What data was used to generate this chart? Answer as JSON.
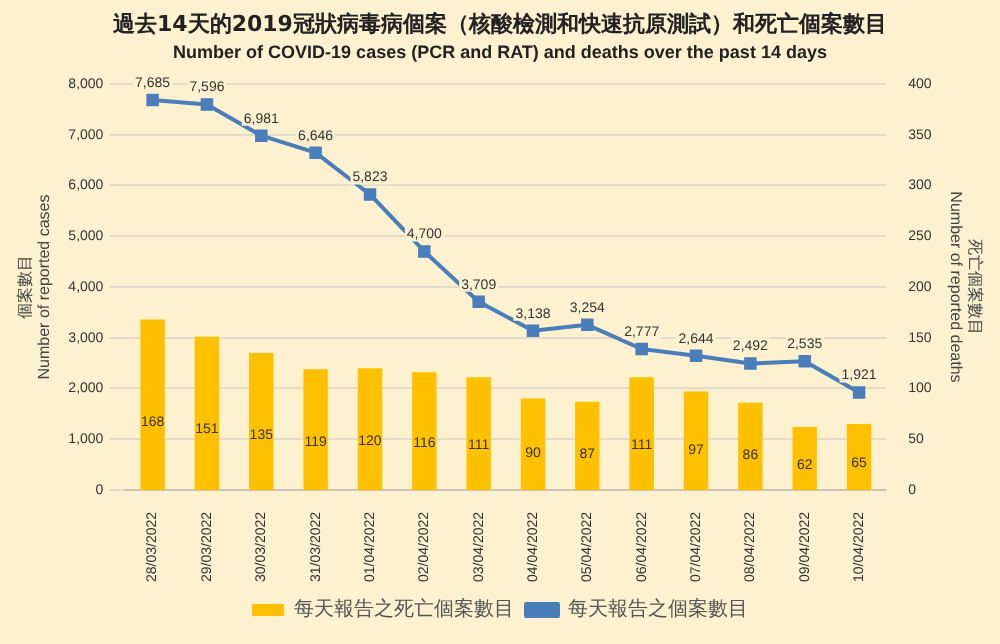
{
  "chart_data": {
    "type": "bar",
    "title": "過去14天的2019冠狀病毒病個案（核酸檢測和快速抗原測試）和死亡個案數目",
    "subtitle": "Number of COVID-19 cases (PCR and RAT) and deaths over the past 14 days",
    "ylabel": "個案數目\nNumber of reported cases",
    "y2label": "死亡個案數目\nNumber of reported deaths",
    "categories": [
      "28/03/2022",
      "29/03/2022",
      "30/03/2022",
      "31/03/2022",
      "01/04/2022",
      "02/04/2022",
      "03/04/2022",
      "04/04/2022",
      "05/04/2022",
      "06/04/2022",
      "07/04/2022",
      "08/04/2022",
      "09/04/2022",
      "10/04/2022"
    ],
    "series": [
      {
        "name": "每天報告之死亡個案數目",
        "axis": "y2",
        "color": "#ffc000",
        "values": [
          168,
          151,
          135,
          119,
          120,
          116,
          111,
          90,
          87,
          111,
          97,
          86,
          62,
          65
        ]
      },
      {
        "name": "每天報告之個案數目",
        "type": "line",
        "color": "#4a7ebb",
        "values": [
          7685,
          7596,
          6981,
          6646,
          5823,
          4700,
          3709,
          3138,
          3254,
          2777,
          2644,
          2492,
          2535,
          1921
        ],
        "value_labels": [
          "7,685",
          "7,596",
          "6,981",
          "6,646",
          "5,823",
          "4,700",
          "3,709",
          "3,138",
          "3,254",
          "2,777",
          "2,644",
          "2,492",
          "2,535",
          "1,921"
        ]
      }
    ],
    "ylim": [
      0,
      8000
    ],
    "yticks": [
      {
        "value": 0,
        "label": "0"
      },
      {
        "value": 1000,
        "label": "1,000"
      },
      {
        "value": 2000,
        "label": "2,000"
      },
      {
        "value": 3000,
        "label": "3,000"
      },
      {
        "value": 4000,
        "label": "4,000"
      },
      {
        "value": 5000,
        "label": "5,000"
      },
      {
        "value": 6000,
        "label": "6,000"
      },
      {
        "value": 7000,
        "label": "7,000"
      },
      {
        "value": 8000,
        "label": "8,000"
      }
    ],
    "y2lim": [
      0,
      400
    ],
    "y2ticks": [
      0,
      50,
      100,
      150,
      200,
      250,
      300,
      350,
      400
    ],
    "data_labels": true,
    "grid": "y",
    "legend": "bottom",
    "marker": "square"
  }
}
